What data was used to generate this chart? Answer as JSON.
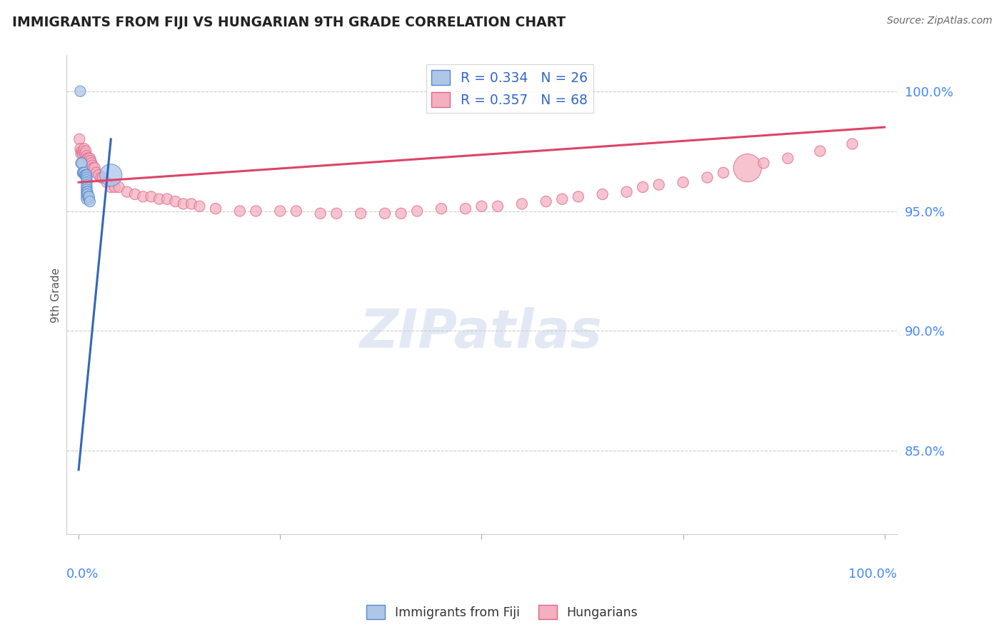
{
  "title": "IMMIGRANTS FROM FIJI VS HUNGARIAN 9TH GRADE CORRELATION CHART",
  "source": "Source: ZipAtlas.com",
  "ylabel": "9th Grade",
  "fiji_R": 0.334,
  "fiji_N": 26,
  "hungarian_R": 0.357,
  "hungarian_N": 68,
  "fiji_color": "#aec6e8",
  "hungarian_color": "#f4afc0",
  "fiji_edge_color": "#5588cc",
  "hungarian_edge_color": "#dd6688",
  "fiji_line_color": "#3366bb",
  "hungarian_line_color": "#dd4466",
  "watermark_color": "#ccd8ec",
  "y_ticks": [
    0.85,
    0.9,
    0.95,
    1.0
  ],
  "y_tick_labels": [
    "85.0%",
    "90.0%",
    "95.0%",
    "100.0%"
  ],
  "ylim_min": 0.815,
  "ylim_max": 1.015,
  "xlim_min": -0.015,
  "xlim_max": 1.015,
  "fiji_scatter_x": [
    0.002,
    0.003,
    0.004,
    0.005,
    0.006,
    0.007,
    0.008,
    0.009,
    0.01,
    0.01,
    0.01,
    0.01,
    0.01,
    0.01,
    0.01,
    0.01,
    0.01,
    0.01,
    0.01,
    0.011,
    0.011,
    0.012,
    0.013,
    0.013,
    0.014,
    0.04
  ],
  "fiji_scatter_y": [
    1.0,
    0.97,
    0.97,
    0.966,
    0.966,
    0.966,
    0.965,
    0.965,
    0.965,
    0.964,
    0.963,
    0.962,
    0.961,
    0.96,
    0.959,
    0.958,
    0.957,
    0.956,
    0.955,
    0.958,
    0.957,
    0.956,
    0.955,
    0.956,
    0.954,
    0.965
  ],
  "fiji_scatter_sizes": [
    120,
    120,
    120,
    120,
    120,
    120,
    120,
    120,
    120,
    120,
    120,
    120,
    120,
    120,
    120,
    120,
    120,
    120,
    120,
    120,
    120,
    120,
    120,
    120,
    120,
    500
  ],
  "hungarian_scatter_x": [
    0.001,
    0.002,
    0.003,
    0.004,
    0.005,
    0.006,
    0.007,
    0.008,
    0.009,
    0.01,
    0.011,
    0.012,
    0.013,
    0.014,
    0.015,
    0.016,
    0.017,
    0.018,
    0.02,
    0.022,
    0.025,
    0.028,
    0.03,
    0.035,
    0.04,
    0.045,
    0.05,
    0.06,
    0.07,
    0.08,
    0.09,
    0.1,
    0.11,
    0.12,
    0.13,
    0.14,
    0.15,
    0.17,
    0.2,
    0.22,
    0.25,
    0.27,
    0.3,
    0.32,
    0.35,
    0.38,
    0.4,
    0.42,
    0.45,
    0.48,
    0.5,
    0.52,
    0.55,
    0.58,
    0.6,
    0.62,
    0.65,
    0.68,
    0.7,
    0.72,
    0.75,
    0.78,
    0.8,
    0.83,
    0.85,
    0.88,
    0.92,
    0.96
  ],
  "hungarian_scatter_y": [
    0.98,
    0.976,
    0.974,
    0.975,
    0.974,
    0.975,
    0.976,
    0.974,
    0.975,
    0.973,
    0.972,
    0.972,
    0.971,
    0.972,
    0.971,
    0.97,
    0.969,
    0.968,
    0.968,
    0.966,
    0.965,
    0.964,
    0.964,
    0.962,
    0.96,
    0.96,
    0.96,
    0.958,
    0.957,
    0.956,
    0.956,
    0.955,
    0.955,
    0.954,
    0.953,
    0.953,
    0.952,
    0.951,
    0.95,
    0.95,
    0.95,
    0.95,
    0.949,
    0.949,
    0.949,
    0.949,
    0.949,
    0.95,
    0.951,
    0.951,
    0.952,
    0.952,
    0.953,
    0.954,
    0.955,
    0.956,
    0.957,
    0.958,
    0.96,
    0.961,
    0.962,
    0.964,
    0.966,
    0.968,
    0.97,
    0.972,
    0.975,
    0.978
  ],
  "hungarian_scatter_sizes": [
    120,
    120,
    120,
    120,
    120,
    120,
    120,
    120,
    120,
    120,
    120,
    120,
    120,
    120,
    120,
    120,
    120,
    120,
    120,
    120,
    120,
    120,
    120,
    120,
    120,
    120,
    120,
    120,
    120,
    120,
    120,
    120,
    120,
    120,
    120,
    120,
    120,
    120,
    120,
    120,
    120,
    120,
    120,
    120,
    120,
    120,
    120,
    120,
    120,
    120,
    120,
    120,
    120,
    120,
    120,
    120,
    120,
    120,
    120,
    120,
    120,
    120,
    120,
    800,
    120,
    120,
    120,
    120
  ],
  "fiji_line_x0": 0.0,
  "fiji_line_y0": 0.842,
  "fiji_line_x1": 0.04,
  "fiji_line_y1": 0.98,
  "hun_line_x0": 0.0,
  "hun_line_y0": 0.962,
  "hun_line_x1": 1.0,
  "hun_line_y1": 0.985
}
